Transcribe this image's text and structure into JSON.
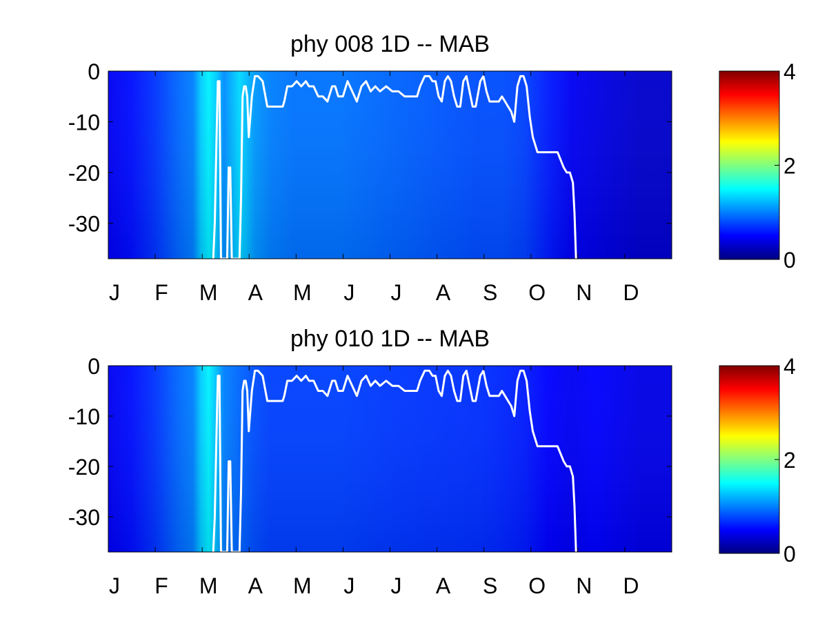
{
  "chart_data": [
    {
      "type": "heatmap",
      "title": "phy  008 1D   -- MAB",
      "xlabel": "",
      "ylabel": "",
      "x_tick_labels": [
        "J",
        "F",
        "M",
        "A",
        "M",
        "J",
        "J",
        "A",
        "S",
        "O",
        "N",
        "D"
      ],
      "x_range_days": [
        0,
        365
      ],
      "y_ticks": [
        0,
        -10,
        -20,
        -30
      ],
      "ylim": [
        -37,
        0
      ],
      "colorbar": {
        "ticks": [
          0,
          2,
          4
        ],
        "range": [
          0,
          4
        ],
        "colormap": "jet"
      },
      "column_intensity": {
        "day": [
          0,
          15,
          30,
          45,
          55,
          60,
          65,
          70,
          75,
          80,
          85,
          95,
          105,
          120,
          150,
          180,
          210,
          240,
          255,
          270,
          285,
          300,
          315,
          330,
          345,
          365
        ],
        "value": [
          0.45,
          0.55,
          0.7,
          0.9,
          1.0,
          1.3,
          1.45,
          1.3,
          1.05,
          1.2,
          1.35,
          1.1,
          1.0,
          0.95,
          0.95,
          0.9,
          0.85,
          0.8,
          0.8,
          0.75,
          0.6,
          0.45,
          0.4,
          0.35,
          0.3,
          0.3
        ]
      },
      "mixed_layer_depth": {
        "day": [
          68,
          69,
          70,
          71,
          72,
          73,
          77,
          78,
          79,
          80,
          82,
          85,
          86,
          87,
          88,
          89,
          90,
          91,
          93,
          95,
          97,
          100,
          103,
          110,
          113,
          114,
          116,
          119,
          122,
          125,
          128,
          130,
          133,
          136,
          139,
          142,
          145,
          147,
          149,
          152,
          155,
          158,
          161,
          164,
          167,
          170,
          173,
          176,
          180,
          184,
          188,
          192,
          196,
          198,
          200,
          202,
          205,
          208,
          210,
          212,
          214,
          216,
          218,
          220,
          222,
          224,
          226,
          228,
          230,
          232,
          234,
          236,
          238,
          241,
          243,
          245,
          247,
          249,
          251,
          253,
          255,
          257,
          259,
          261,
          263,
          265,
          267,
          269,
          271,
          273,
          275,
          278,
          281,
          285,
          288,
          291,
          295,
          297,
          299,
          301,
          302,
          303
        ],
        "depth": [
          -37,
          -30,
          -15,
          -2,
          -2,
          -37,
          -37,
          -19,
          -19,
          -37,
          -37,
          -37,
          -25,
          -5,
          -3,
          -3,
          -5,
          -13,
          -5,
          -1,
          -1,
          -2,
          -7,
          -7,
          -7,
          -6,
          -3,
          -3,
          -2,
          -3,
          -2,
          -3,
          -3,
          -5,
          -5,
          -6,
          -3,
          -3,
          -5,
          -5,
          -2,
          -4,
          -6,
          -3,
          -2,
          -4,
          -3,
          -4,
          -3,
          -4,
          -4,
          -5,
          -5,
          -5,
          -5,
          -3,
          -1,
          -1,
          -2,
          -2,
          -5,
          -6,
          -2,
          -1,
          -2,
          -5,
          -7,
          -7,
          -2,
          -1,
          -4,
          -7,
          -7,
          -2,
          -1,
          -4,
          -6,
          -6,
          -6,
          -6,
          -5,
          -6,
          -7,
          -8,
          -10,
          -3,
          -1,
          -1,
          -3,
          -9,
          -13,
          -16,
          -16,
          -16,
          -16,
          -16,
          -19,
          -20,
          -20,
          -22,
          -28,
          -37
        ]
      }
    },
    {
      "type": "heatmap",
      "title": "phy  010 1D   -- MAB",
      "xlabel": "",
      "ylabel": "",
      "x_tick_labels": [
        "J",
        "F",
        "M",
        "A",
        "M",
        "J",
        "J",
        "A",
        "S",
        "O",
        "N",
        "D"
      ],
      "x_range_days": [
        0,
        365
      ],
      "y_ticks": [
        0,
        -10,
        -20,
        -30
      ],
      "ylim": [
        -37,
        0
      ],
      "colorbar": {
        "ticks": [
          0,
          2,
          4
        ],
        "range": [
          0,
          4
        ],
        "colormap": "jet"
      },
      "column_intensity": {
        "day": [
          0,
          15,
          30,
          45,
          55,
          60,
          65,
          70,
          75,
          80,
          85,
          95,
          105,
          120,
          150,
          180,
          210,
          240,
          255,
          270,
          285,
          300,
          315,
          330,
          345,
          365
        ],
        "value": [
          0.45,
          0.55,
          0.7,
          0.9,
          1.0,
          1.3,
          1.45,
          1.25,
          1.0,
          0.95,
          0.9,
          0.8,
          0.75,
          0.75,
          0.75,
          0.72,
          0.7,
          0.68,
          0.65,
          0.6,
          0.5,
          0.45,
          0.5,
          0.45,
          0.4,
          0.4
        ]
      },
      "mixed_layer_depth": {
        "day": [
          68,
          69,
          70,
          71,
          72,
          73,
          77,
          78,
          79,
          80,
          82,
          85,
          86,
          87,
          88,
          89,
          90,
          91,
          93,
          95,
          97,
          100,
          103,
          110,
          113,
          114,
          116,
          119,
          122,
          125,
          128,
          130,
          133,
          136,
          139,
          142,
          145,
          147,
          149,
          152,
          155,
          158,
          161,
          164,
          167,
          170,
          173,
          176,
          180,
          184,
          188,
          192,
          196,
          198,
          200,
          202,
          205,
          208,
          210,
          212,
          214,
          216,
          218,
          220,
          222,
          224,
          226,
          228,
          230,
          232,
          234,
          236,
          238,
          241,
          243,
          245,
          247,
          249,
          251,
          253,
          255,
          257,
          259,
          261,
          263,
          265,
          267,
          269,
          271,
          273,
          275,
          278,
          281,
          285,
          288,
          291,
          295,
          297,
          299,
          301,
          302,
          303
        ],
        "depth": [
          -37,
          -30,
          -15,
          -2,
          -2,
          -37,
          -37,
          -19,
          -19,
          -37,
          -37,
          -37,
          -25,
          -5,
          -3,
          -3,
          -5,
          -13,
          -5,
          -1,
          -1,
          -2,
          -7,
          -7,
          -7,
          -6,
          -3,
          -3,
          -2,
          -3,
          -2,
          -3,
          -3,
          -5,
          -5,
          -6,
          -3,
          -3,
          -5,
          -5,
          -2,
          -4,
          -6,
          -3,
          -2,
          -4,
          -3,
          -4,
          -3,
          -4,
          -4,
          -5,
          -5,
          -5,
          -5,
          -3,
          -1,
          -1,
          -2,
          -2,
          -5,
          -6,
          -2,
          -1,
          -2,
          -5,
          -7,
          -7,
          -2,
          -1,
          -4,
          -7,
          -7,
          -2,
          -1,
          -4,
          -6,
          -6,
          -6,
          -6,
          -5,
          -6,
          -7,
          -8,
          -10,
          -3,
          -1,
          -1,
          -3,
          -9,
          -13,
          -16,
          -16,
          -16,
          -16,
          -16,
          -19,
          -20,
          -20,
          -22,
          -28,
          -37
        ]
      }
    }
  ]
}
